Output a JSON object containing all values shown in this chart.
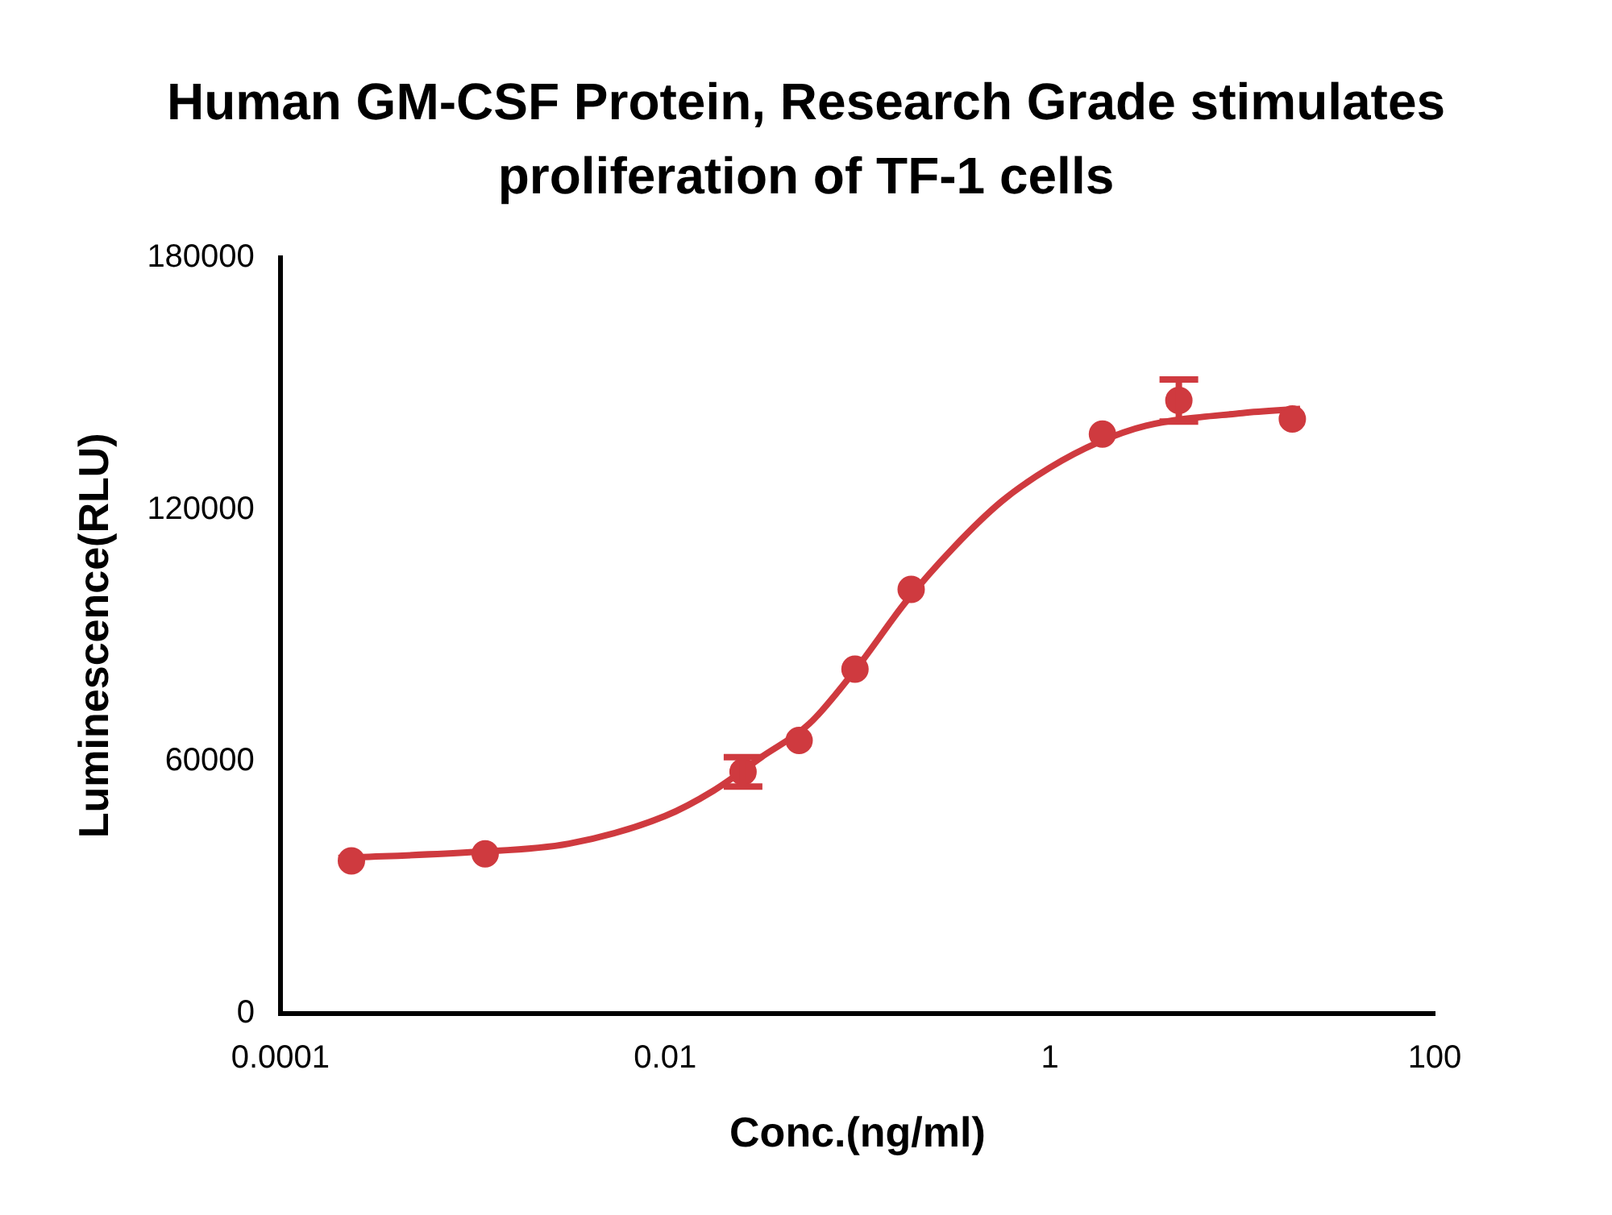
{
  "chart_data": {
    "type": "scatter",
    "title": "Human GM-CSF Protein, Research Grade stimulates proliferation of TF-1 cells",
    "xlabel": "Conc.(ng/ml)",
    "ylabel": "Luminescence(RLU)",
    "log": "x",
    "grid": false,
    "legend": false,
    "xlim": [
      0.0001,
      100
    ],
    "xticks": [
      0.0001,
      0.01,
      1,
      100
    ],
    "ylim": [
      0,
      180000
    ],
    "yticks": [
      0,
      60000,
      120000,
      180000
    ],
    "series": [
      {
        "color": "#cf3a3f",
        "marker": "circle",
        "x": [
          0.000234,
          0.00116,
          0.0254,
          0.0497,
          0.097,
          0.19,
          1.875,
          4.68,
          18.2
        ],
        "values": [
          36300,
          38000,
          57500,
          65000,
          82000,
          101000,
          138000,
          146000,
          141600
        ],
        "errors": [
          null,
          null,
          3500,
          null,
          null,
          null,
          null,
          5000,
          null
        ]
      },
      {
        "type": "line",
        "color": "#cf3a3f",
        "marker": "none",
        "line_style": "solid",
        "x": [
          0.0002,
          0.001,
          0.00316,
          0.01,
          0.0178,
          0.0316,
          0.0562,
          0.1,
          0.178,
          0.316,
          0.562,
          1,
          1.78,
          3.16,
          10,
          20
        ],
        "values": [
          37000,
          38400,
          40400,
          47000,
          53000,
          61000,
          69000,
          82500,
          98000,
          111000,
          122000,
          130000,
          136000,
          140000,
          143000,
          144000
        ]
      }
    ]
  }
}
